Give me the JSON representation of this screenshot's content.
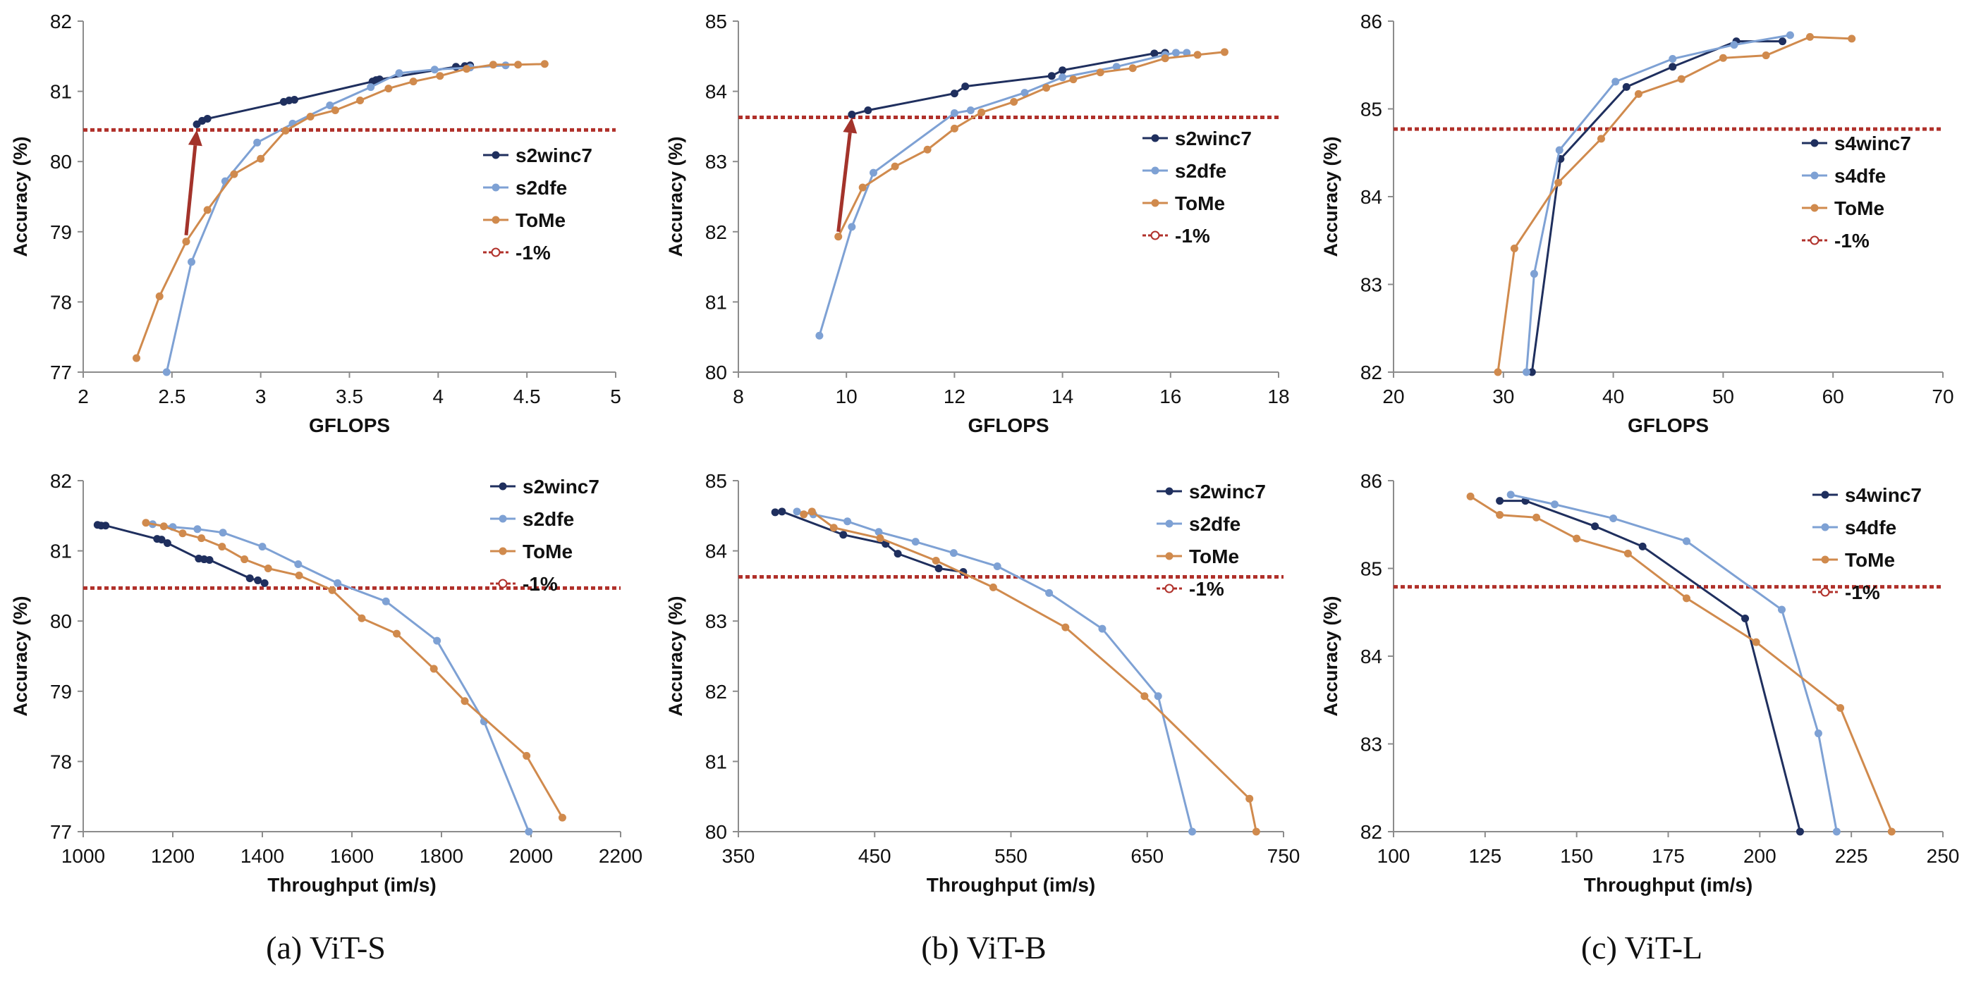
{
  "colors": {
    "s2winc": "#1f2f5e",
    "dfe": "#7ea1d4",
    "tome": "#d08a4d",
    "ref": "#b0302a",
    "arrow": "#a3332b"
  },
  "captions": [
    "(a) ViT-S",
    "(b) ViT-B",
    "(c) ViT-L"
  ],
  "chart_data": [
    {
      "type": "line",
      "xlabel": "GFLOPS",
      "ylabel": "Accuracy (%)",
      "xlim": [
        2,
        5
      ],
      "ylim": [
        77,
        82
      ],
      "xticks": [
        "2",
        "2.5",
        "3",
        "3.5",
        "4",
        "4.5",
        "5"
      ],
      "yticks": [
        "77",
        "78",
        "79",
        "80",
        "81",
        "82"
      ],
      "legend": {
        "position": "right-middle",
        "entries": [
          "s2winc7",
          "s2dfe",
          "ToMe",
          "-1%"
        ]
      },
      "reference_line": 80.45,
      "arrow": {
        "from": [
          2.58,
          78.95
        ],
        "to": [
          2.64,
          80.45
        ]
      },
      "series": [
        {
          "name": "s2winc7",
          "x": [
            2.64,
            2.67,
            2.7,
            3.13,
            3.16,
            3.19,
            3.63,
            3.65,
            3.67,
            4.1,
            4.15,
            4.18
          ],
          "y": [
            80.53,
            80.58,
            80.61,
            80.85,
            80.87,
            80.88,
            81.14,
            81.16,
            81.17,
            81.35,
            81.36,
            81.37
          ]
        },
        {
          "name": "s2dfe",
          "x": [
            2.47,
            2.61,
            2.8,
            2.98,
            3.18,
            3.39,
            3.62,
            3.78,
            3.98,
            4.18,
            4.38
          ],
          "y": [
            77.0,
            78.57,
            79.72,
            80.27,
            80.54,
            80.8,
            81.06,
            81.26,
            81.31,
            81.34,
            81.37
          ]
        },
        {
          "name": "ToMe",
          "x": [
            2.3,
            2.43,
            2.58,
            2.7,
            2.85,
            3.0,
            3.14,
            3.28,
            3.42,
            3.56,
            3.72,
            3.86,
            4.01,
            4.16,
            4.31,
            4.45,
            4.6
          ],
          "y": [
            77.2,
            78.08,
            78.86,
            79.31,
            79.82,
            80.04,
            80.44,
            80.64,
            80.73,
            80.87,
            81.04,
            81.14,
            81.22,
            81.32,
            81.38,
            81.38,
            81.39
          ]
        }
      ]
    },
    {
      "type": "line",
      "xlabel": "GFLOPS",
      "ylabel": "Accuracy (%)",
      "xlim": [
        8,
        18
      ],
      "ylim": [
        80,
        85
      ],
      "xticks": [
        "8",
        "10",
        "12",
        "14",
        "16",
        "18"
      ],
      "yticks": [
        "80",
        "81",
        "82",
        "83",
        "84",
        "85"
      ],
      "legend": {
        "position": "right-middle",
        "entries": [
          "s2winc7",
          "s2dfe",
          "ToMe",
          "-1%"
        ]
      },
      "reference_line": 83.63,
      "arrow": {
        "from": [
          9.85,
          82.0
        ],
        "to": [
          10.1,
          83.63
        ]
      },
      "series": [
        {
          "name": "s2winc7",
          "x": [
            10.1,
            10.4,
            12.0,
            12.2,
            13.8,
            14.0,
            15.7,
            15.9
          ],
          "y": [
            83.67,
            83.73,
            83.97,
            84.07,
            84.22,
            84.3,
            84.54,
            84.55
          ]
        },
        {
          "name": "s2dfe",
          "x": [
            9.5,
            10.1,
            10.5,
            12.0,
            12.3,
            13.3,
            14.0,
            15.0,
            15.9,
            16.1,
            16.3
          ],
          "y": [
            80.52,
            82.07,
            82.84,
            83.69,
            83.73,
            83.98,
            84.2,
            84.35,
            84.52,
            84.55,
            84.55
          ]
        },
        {
          "name": "ToMe",
          "x": [
            9.85,
            10.3,
            10.9,
            11.5,
            12.0,
            12.5,
            13.1,
            13.7,
            14.2,
            14.7,
            15.3,
            15.9,
            16.5,
            17.0
          ],
          "y": [
            81.93,
            82.63,
            82.93,
            83.17,
            83.47,
            83.7,
            83.85,
            84.05,
            84.17,
            84.27,
            84.33,
            84.47,
            84.52,
            84.56
          ]
        }
      ]
    },
    {
      "type": "line",
      "xlabel": "GFLOPS",
      "ylabel": "Accuracy (%)",
      "xlim": [
        20,
        70
      ],
      "ylim": [
        82,
        86
      ],
      "xticks": [
        "20",
        "30",
        "40",
        "50",
        "60",
        "70"
      ],
      "yticks": [
        "82",
        "83",
        "84",
        "85",
        "86"
      ],
      "legend": {
        "position": "right-middle",
        "entries": [
          "s4winc7",
          "s4dfe",
          "ToMe",
          "-1%"
        ]
      },
      "reference_line": 84.77,
      "series": [
        {
          "name": "s4winc7",
          "x": [
            32.6,
            35.2,
            41.2,
            45.4,
            51.2,
            55.4
          ],
          "y": [
            82.0,
            84.43,
            85.25,
            85.48,
            85.77,
            85.77
          ]
        },
        {
          "name": "s4dfe",
          "x": [
            32.1,
            32.8,
            35.1,
            40.2,
            45.4,
            51.0,
            56.1
          ],
          "y": [
            82.0,
            83.12,
            84.53,
            85.31,
            85.57,
            85.73,
            85.84
          ]
        },
        {
          "name": "ToMe",
          "x": [
            29.5,
            31.0,
            35.0,
            38.9,
            42.3,
            46.2,
            50.0,
            53.9,
            57.9,
            61.7
          ],
          "y": [
            82.0,
            83.41,
            84.16,
            84.66,
            85.17,
            85.34,
            85.58,
            85.61,
            85.82,
            85.8
          ]
        }
      ]
    },
    {
      "type": "line",
      "xlabel": "Throughput (im/s)",
      "ylabel": "Accuracy (%)",
      "xlim": [
        1000,
        2200
      ],
      "ylim": [
        77,
        82
      ],
      "xticks": [
        "1000",
        "1200",
        "1400",
        "1600",
        "1800",
        "2000",
        "2200"
      ],
      "yticks": [
        "77",
        "78",
        "79",
        "80",
        "81",
        "82"
      ],
      "legend": {
        "position": "top-right",
        "entries": [
          "s2winc7",
          "s2dfe",
          "ToMe",
          "-1%"
        ]
      },
      "reference_line": 80.47,
      "series": [
        {
          "name": "s2winc7",
          "x": [
            1032,
            1040,
            1050,
            1165,
            1175,
            1188,
            1258,
            1270,
            1282,
            1372,
            1390,
            1405
          ],
          "y": [
            81.37,
            81.36,
            81.36,
            81.17,
            81.16,
            81.11,
            80.89,
            80.88,
            80.87,
            80.61,
            80.58,
            80.54
          ]
        },
        {
          "name": "s2dfe",
          "x": [
            1155,
            1200,
            1255,
            1312,
            1400,
            1480,
            1568,
            1676,
            1790,
            1895,
            1995
          ],
          "y": [
            81.38,
            81.34,
            81.31,
            81.26,
            81.06,
            80.81,
            80.54,
            80.28,
            79.72,
            78.57,
            77.0
          ]
        },
        {
          "name": "ToMe",
          "x": [
            1140,
            1180,
            1222,
            1264,
            1310,
            1360,
            1413,
            1482,
            1556,
            1622,
            1700,
            1783,
            1852,
            1990,
            2070
          ],
          "y": [
            81.4,
            81.35,
            81.25,
            81.18,
            81.06,
            80.88,
            80.75,
            80.65,
            80.44,
            80.04,
            79.82,
            79.32,
            78.86,
            78.08,
            77.2
          ]
        }
      ]
    },
    {
      "type": "line",
      "xlabel": "Throughput (im/s)",
      "ylabel": "Accuracy (%)",
      "xlim": [
        350,
        750
      ],
      "ylim": [
        80,
        85
      ],
      "xticks": [
        "350",
        "450",
        "550",
        "650",
        "750"
      ],
      "yticks": [
        "80",
        "81",
        "82",
        "83",
        "84",
        "85"
      ],
      "legend": {
        "position": "top-right",
        "entries": [
          "s2winc7",
          "s2dfe",
          "ToMe",
          "-1%"
        ]
      },
      "reference_line": 83.63,
      "series": [
        {
          "name": "s2winc7",
          "x": [
            377,
            382,
            427,
            458,
            467,
            497,
            515
          ],
          "y": [
            84.55,
            84.56,
            84.23,
            84.1,
            83.96,
            83.75,
            83.7
          ]
        },
        {
          "name": "s2dfe",
          "x": [
            393,
            405,
            430,
            453,
            480,
            508,
            540,
            578,
            617,
            658,
            683
          ],
          "y": [
            84.56,
            84.52,
            84.42,
            84.27,
            84.13,
            83.97,
            83.78,
            83.4,
            82.89,
            81.93,
            80.0
          ]
        },
        {
          "name": "ToMe",
          "x": [
            398,
            404,
            420,
            454,
            495,
            537,
            590,
            648,
            725,
            730
          ],
          "y": [
            84.52,
            84.56,
            84.33,
            84.18,
            83.86,
            83.48,
            82.91,
            81.93,
            80.47,
            80.0
          ]
        }
      ]
    },
    {
      "type": "line",
      "xlabel": "Throughput (im/s)",
      "ylabel": "Accuracy (%)",
      "xlim": [
        100,
        250
      ],
      "ylim": [
        82,
        86
      ],
      "xticks": [
        "100",
        "125",
        "150",
        "175",
        "200",
        "225",
        "250"
      ],
      "yticks": [
        "82",
        "83",
        "84",
        "85",
        "86"
      ],
      "legend": {
        "position": "top-right",
        "entries": [
          "s4winc7",
          "s4dfe",
          "ToMe",
          "-1%"
        ]
      },
      "reference_line": 84.79,
      "series": [
        {
          "name": "s4winc7",
          "x": [
            129,
            136,
            155,
            168,
            196,
            211
          ],
          "y": [
            85.77,
            85.77,
            85.48,
            85.25,
            84.43,
            82.0
          ]
        },
        {
          "name": "s4dfe",
          "x": [
            132,
            144,
            160,
            180,
            206,
            216,
            221
          ],
          "y": [
            85.84,
            85.73,
            85.57,
            85.31,
            84.53,
            83.12,
            82.0
          ]
        },
        {
          "name": "ToMe",
          "x": [
            121,
            129,
            139,
            150,
            164,
            180,
            199,
            222,
            236
          ],
          "y": [
            85.82,
            85.61,
            85.58,
            85.34,
            85.17,
            84.66,
            84.16,
            83.41,
            82.0
          ]
        }
      ]
    }
  ]
}
